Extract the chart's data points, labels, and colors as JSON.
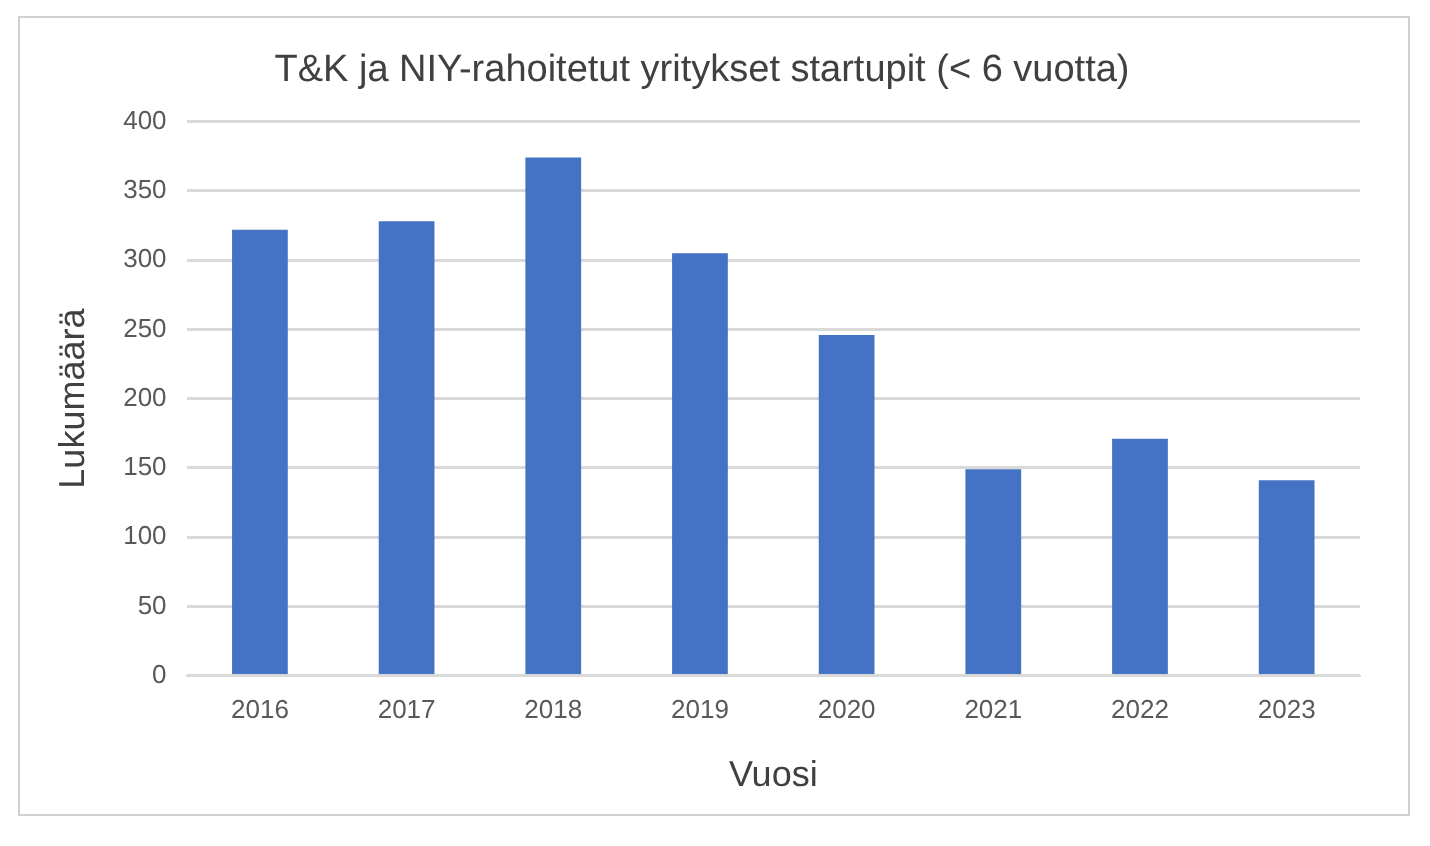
{
  "chart_data": {
    "type": "bar",
    "title": "T&K ja NIY-rahoitetut yritykset startupit (< 6 vuotta)",
    "xlabel": "Vuosi",
    "ylabel": "Lukumäärä",
    "categories": [
      "2016",
      "2017",
      "2018",
      "2019",
      "2020",
      "2021",
      "2022",
      "2023"
    ],
    "values": [
      322,
      328,
      374,
      305,
      246,
      149,
      171,
      141
    ],
    "color": "#4472c4",
    "ylim": [
      0,
      400
    ],
    "yticks": [
      0,
      50,
      100,
      150,
      200,
      250,
      300,
      350,
      400
    ],
    "grid": "y",
    "legend": false
  }
}
